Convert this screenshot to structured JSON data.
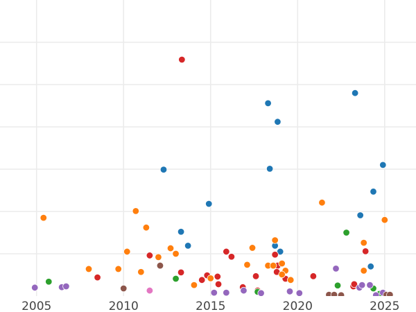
{
  "chart_data": {
    "type": "scatter",
    "title": "",
    "xlabel": "",
    "ylabel": "",
    "xlim": [
      2002.9,
      2026.8
    ],
    "ylim": [
      0,
      7
    ],
    "grid": true,
    "legend": "none",
    "x_ticks": [
      2005,
      2010,
      2015,
      2020,
      2025
    ],
    "x_tick_labels": [
      "2005",
      "2010",
      "2015",
      "2020",
      "2025"
    ],
    "y_gridlines": [
      1,
      2,
      3,
      4,
      5,
      6
    ],
    "series": [
      {
        "color": "#1f77b4",
        "points": [
          [
            2018.3,
            4.56
          ],
          [
            2018.85,
            4.12
          ],
          [
            2023.3,
            4.8
          ],
          [
            2012.3,
            2.99
          ],
          [
            2018.4,
            3.01
          ],
          [
            2024.9,
            3.1
          ],
          [
            2014.9,
            2.18
          ],
          [
            2024.35,
            2.47
          ],
          [
            2023.6,
            1.91
          ],
          [
            2013.3,
            1.52
          ],
          [
            2013.7,
            1.19
          ],
          [
            2018.7,
            1.19
          ],
          [
            2019.0,
            1.05
          ],
          [
            2024.2,
            0.7
          ]
        ]
      },
      {
        "color": "#d62728",
        "points": [
          [
            2013.35,
            5.59
          ],
          [
            2008.5,
            0.44
          ],
          [
            2011.5,
            0.96
          ],
          [
            2013.3,
            0.56
          ],
          [
            2014.8,
            0.49
          ],
          [
            2014.5,
            0.38
          ],
          [
            2015.4,
            0.46
          ],
          [
            2015.45,
            0.28
          ],
          [
            2015.9,
            1.05
          ],
          [
            2016.2,
            0.93
          ],
          [
            2016.85,
            0.21
          ],
          [
            2017.6,
            0.47
          ],
          [
            2017.7,
            0.13
          ],
          [
            2018.7,
            0.98
          ],
          [
            2018.85,
            0.72
          ],
          [
            2018.8,
            0.57
          ],
          [
            2019.3,
            0.41
          ],
          [
            2020.9,
            0.47
          ],
          [
            2023.2,
            0.23
          ],
          [
            2023.25,
            0.28
          ],
          [
            2023.9,
            1.06
          ]
        ]
      },
      {
        "color": "#ff7f0e",
        "points": [
          [
            2005.4,
            1.85
          ],
          [
            2010.7,
            2.01
          ],
          [
            2011.3,
            1.62
          ],
          [
            2010.2,
            1.05
          ],
          [
            2008.0,
            0.64
          ],
          [
            2009.7,
            0.64
          ],
          [
            2011.0,
            0.57
          ],
          [
            2012.7,
            1.13
          ],
          [
            2013.0,
            1.0
          ],
          [
            2012.0,
            0.92
          ],
          [
            2014.05,
            0.26
          ],
          [
            2015.0,
            0.42
          ],
          [
            2017.1,
            0.74
          ],
          [
            2017.4,
            1.14
          ],
          [
            2018.7,
            1.32
          ],
          [
            2018.3,
            0.72
          ],
          [
            2018.6,
            0.72
          ],
          [
            2019.1,
            0.77
          ],
          [
            2019.3,
            0.6
          ],
          [
            2019.1,
            0.51
          ],
          [
            2019.6,
            0.38
          ],
          [
            2021.4,
            2.21
          ],
          [
            2025.0,
            1.8
          ],
          [
            2023.8,
            1.26
          ],
          [
            2023.8,
            0.6
          ]
        ]
      },
      {
        "color": "#2ca02c",
        "points": [
          [
            2005.7,
            0.34
          ],
          [
            2013.0,
            0.41
          ],
          [
            2022.8,
            1.5
          ],
          [
            2022.3,
            0.25
          ],
          [
            2024.35,
            0.18
          ],
          [
            2017.7,
            0.1
          ],
          [
            2024.7,
            0.05
          ]
        ]
      },
      {
        "color": "#9467bd",
        "points": [
          [
            2004.9,
            0.2
          ],
          [
            2006.45,
            0.21
          ],
          [
            2006.7,
            0.23
          ],
          [
            2015.2,
            0.08
          ],
          [
            2015.9,
            0.08
          ],
          [
            2016.9,
            0.13
          ],
          [
            2017.9,
            0.07
          ],
          [
            2019.55,
            0.11
          ],
          [
            2020.1,
            0.07
          ],
          [
            2022.2,
            0.65
          ],
          [
            2023.55,
            0.2
          ],
          [
            2023.7,
            0.26
          ],
          [
            2024.15,
            0.26
          ],
          [
            2024.9,
            0.08
          ],
          [
            2024.5,
            0.02
          ]
        ]
      },
      {
        "color": "#8c564b",
        "points": [
          [
            2010.0,
            0.18
          ],
          [
            2012.1,
            0.72
          ],
          [
            2021.8,
            0.03
          ],
          [
            2022.1,
            0.03
          ],
          [
            2022.5,
            0.02
          ],
          [
            2025.1,
            0.03
          ],
          [
            2025.3,
            0.03
          ]
        ]
      },
      {
        "color": "#e377c2",
        "points": [
          [
            2011.5,
            0.13
          ]
        ]
      }
    ]
  }
}
